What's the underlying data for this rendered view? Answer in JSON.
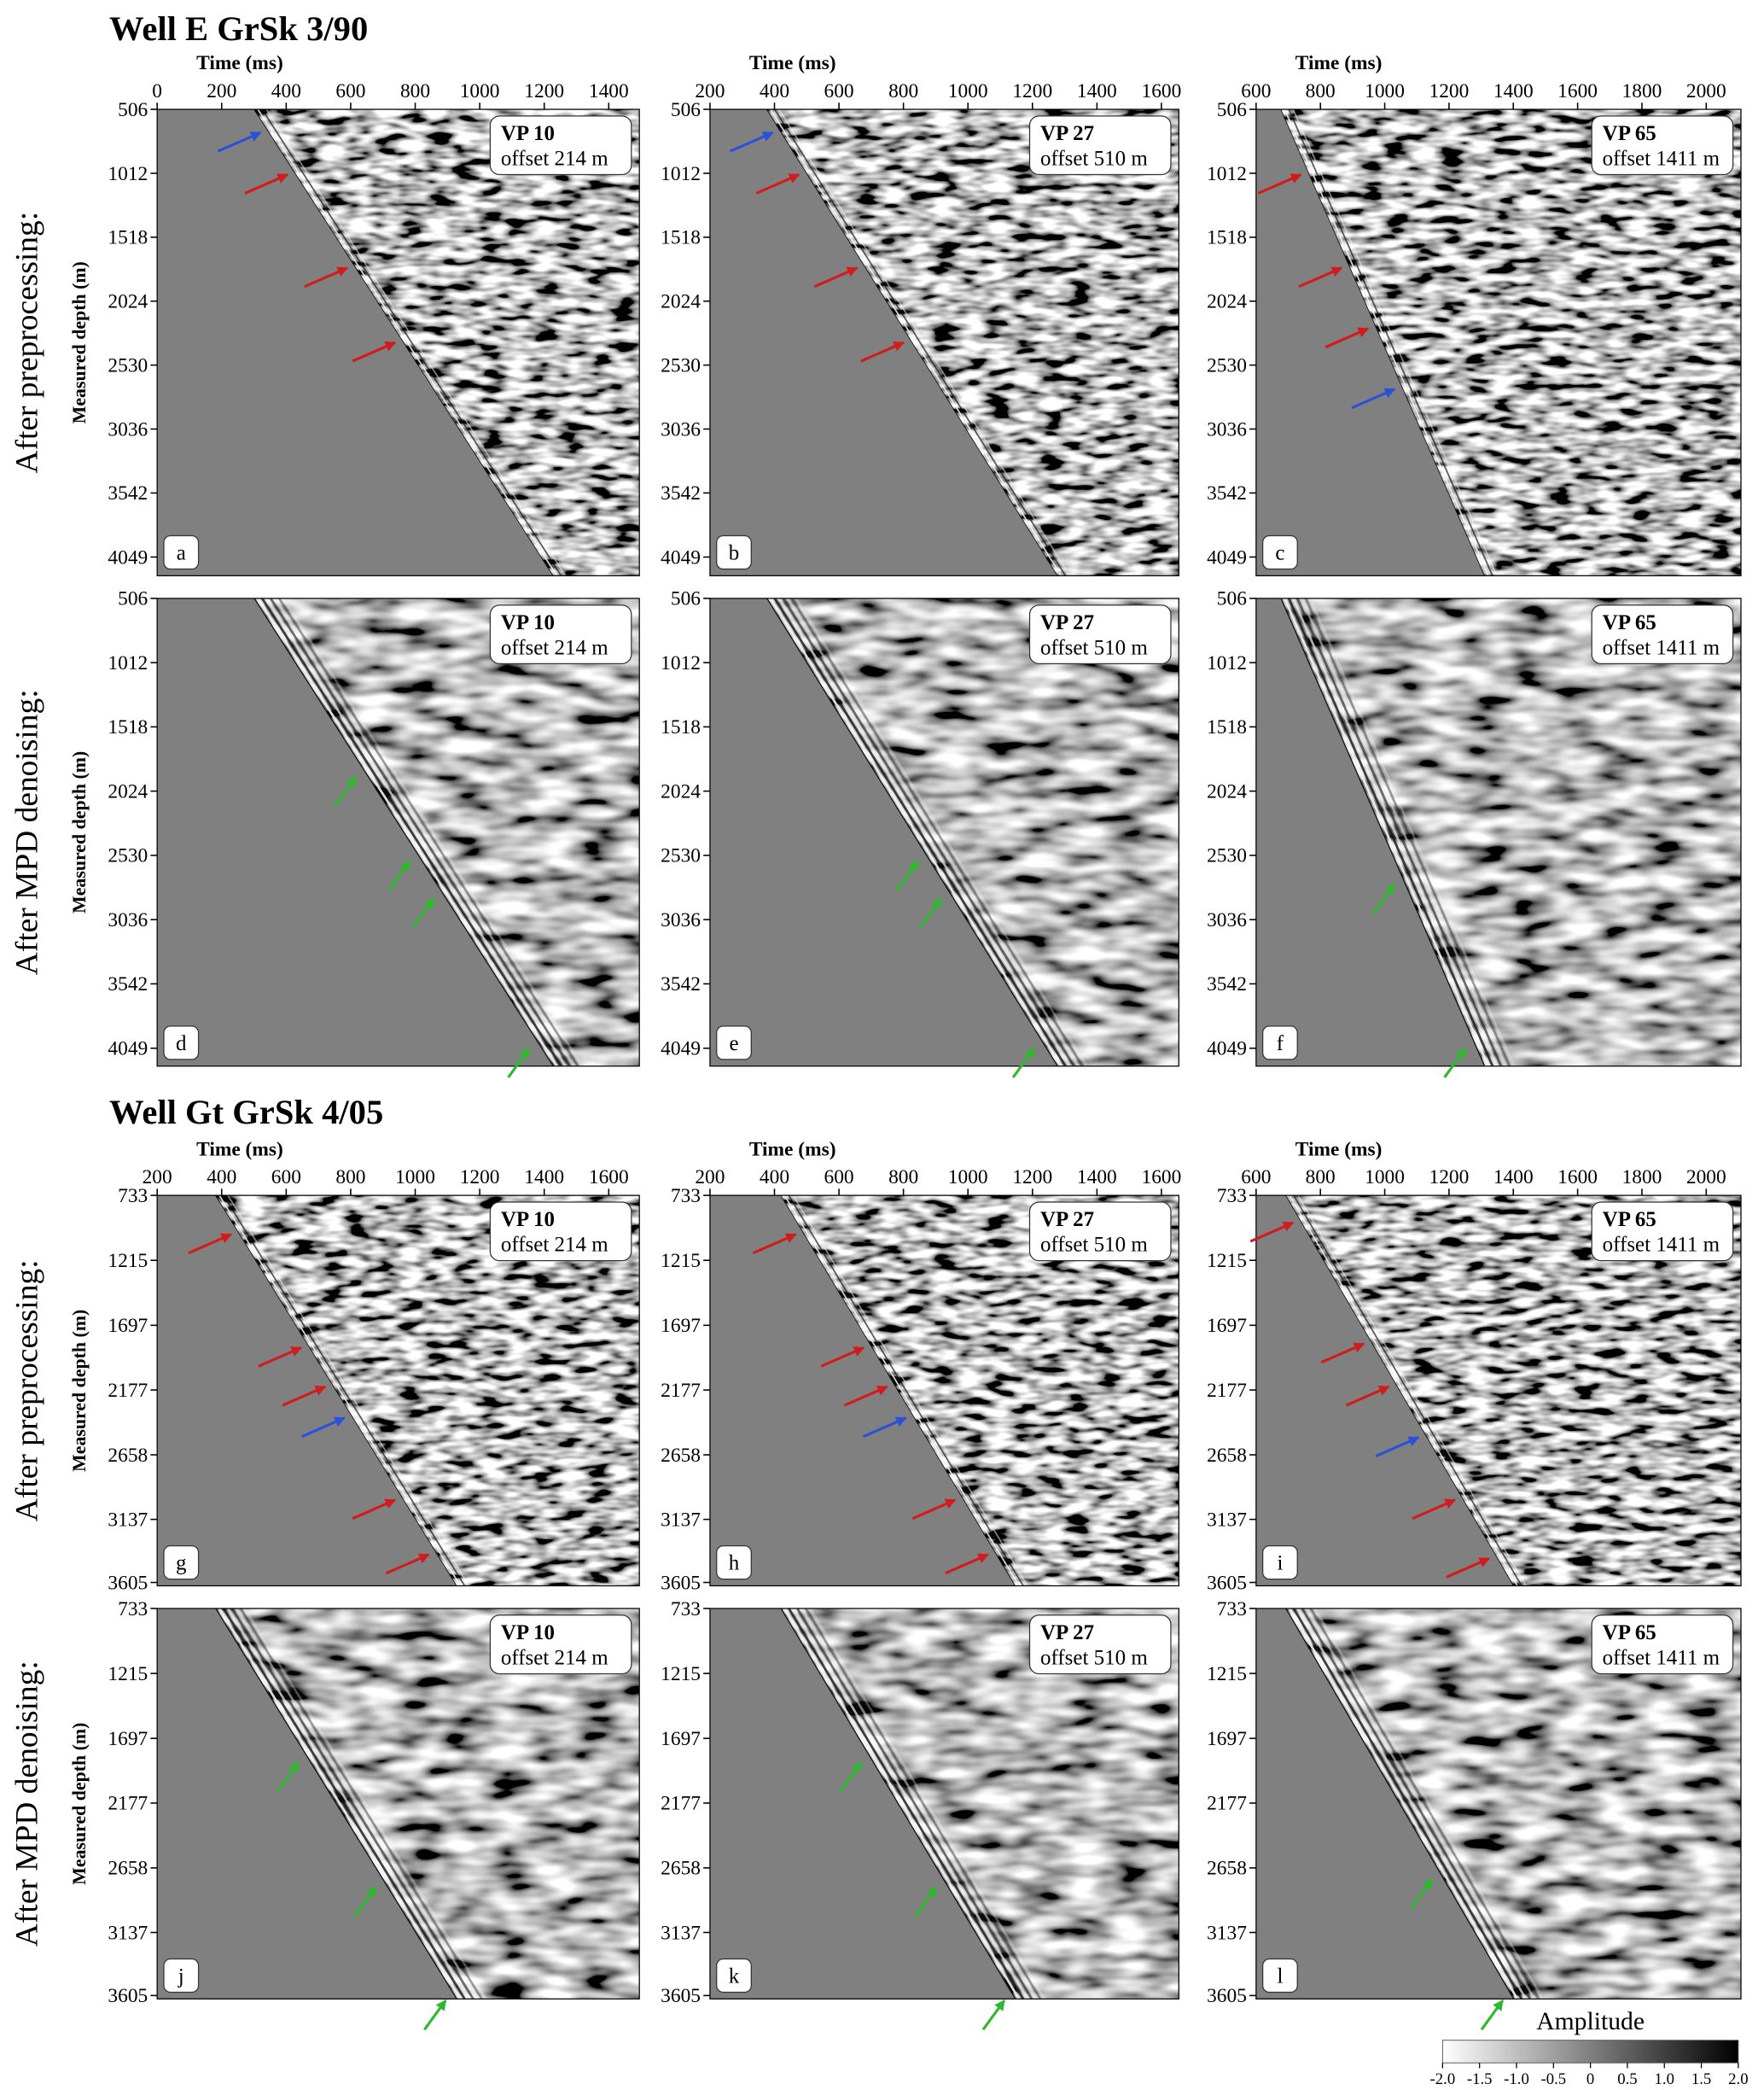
{
  "figure_titles": [
    "Well E GrSk 3/90",
    "Well Gt GrSk 4/05"
  ],
  "row_labels": [
    "After preprocessing:",
    "After MPD denoising:",
    "After preprocessing:",
    "After MPD denoising:"
  ],
  "chart_data": [
    {
      "type": "seismic",
      "label": "a",
      "vp": "VP 10",
      "offset": "offset 214 m",
      "xlabel": "Time (ms)",
      "ylabel": "Measured depth (m)",
      "xlim": [
        0,
        1495
      ],
      "xticks": [
        0,
        200,
        400,
        600,
        800,
        1000,
        1200,
        1400
      ],
      "ylim": [
        506,
        4197
      ],
      "yticks": [
        506,
        1012,
        1518,
        2024,
        2530,
        3036,
        3542,
        4049
      ]
    },
    {
      "type": "seismic",
      "label": "b",
      "vp": "VP 27",
      "offset": "offset 510 m",
      "xlabel": "Time (ms)",
      "xlim": [
        200,
        1654
      ],
      "xticks": [
        200,
        400,
        600,
        800,
        1000,
        1200,
        1400,
        1600
      ],
      "ylim": [
        506,
        4197
      ],
      "yticks": [
        506,
        1012,
        1518,
        2024,
        2530,
        3036,
        3542,
        4049
      ]
    },
    {
      "type": "seismic",
      "label": "c",
      "vp": "VP 65",
      "offset": "offset 1411 m",
      "xlabel": "Time (ms)",
      "xlim": [
        600,
        2108
      ],
      "xticks": [
        600,
        800,
        1000,
        1200,
        1400,
        1600,
        1800,
        2000
      ],
      "ylim": [
        506,
        4197
      ],
      "yticks": [
        506,
        1012,
        1518,
        2024,
        2530,
        3036,
        3542,
        4049
      ]
    },
    {
      "type": "seismic",
      "label": "d",
      "vp": "VP 10",
      "offset": "offset 214 m",
      "ylabel": "Measured depth (m)",
      "ylim": [
        506,
        4190
      ],
      "yticks": [
        506,
        1012,
        1518,
        2024,
        2530,
        3036,
        3542,
        4049
      ]
    },
    {
      "type": "seismic",
      "label": "e",
      "vp": "VP 27",
      "offset": "offset 510 m",
      "ylim": [
        506,
        4190
      ],
      "yticks": [
        506,
        1012,
        1518,
        2024,
        2530,
        3036,
        3542,
        4049
      ]
    },
    {
      "type": "seismic",
      "label": "f",
      "vp": "VP 65",
      "offset": "offset 1411 m",
      "ylim": [
        506,
        4190
      ],
      "yticks": [
        506,
        1012,
        1518,
        2024,
        2530,
        3036,
        3542,
        4049
      ]
    },
    {
      "type": "seismic",
      "label": "g",
      "vp": "VP 10",
      "offset": "offset 214 m",
      "xlabel": "Time (ms)",
      "ylabel": "Measured depth (m)",
      "xlim": [
        200,
        1695
      ],
      "xticks": [
        200,
        400,
        600,
        800,
        1000,
        1200,
        1400,
        1600
      ],
      "ylim": [
        733,
        3630
      ],
      "yticks": [
        733,
        1215,
        1697,
        2177,
        2658,
        3137,
        3605
      ]
    },
    {
      "type": "seismic",
      "label": "h",
      "vp": "VP 27",
      "offset": "offset 510 m",
      "xlabel": "Time (ms)",
      "xlim": [
        200,
        1654
      ],
      "xticks": [
        200,
        400,
        600,
        800,
        1000,
        1200,
        1400,
        1600
      ],
      "ylim": [
        733,
        3630
      ],
      "yticks": [
        733,
        1215,
        1697,
        2177,
        2658,
        3137,
        3605
      ]
    },
    {
      "type": "seismic",
      "label": "i",
      "vp": "VP 65",
      "offset": "offset 1411 m",
      "xlabel": "Time (ms)",
      "xlim": [
        600,
        2108
      ],
      "xticks": [
        600,
        800,
        1000,
        1200,
        1400,
        1600,
        1800,
        2000
      ],
      "ylim": [
        733,
        3630
      ],
      "yticks": [
        733,
        1215,
        1697,
        2177,
        2658,
        3137,
        3605
      ]
    },
    {
      "type": "seismic",
      "label": "j",
      "vp": "VP 10",
      "offset": "offset 214 m",
      "ylabel": "Measured depth (m)",
      "ylim": [
        733,
        3630
      ],
      "yticks": [
        733,
        1215,
        1697,
        2177,
        2658,
        3137,
        3605
      ]
    },
    {
      "type": "seismic",
      "label": "k",
      "vp": "VP 27",
      "offset": "offset 510 m",
      "ylim": [
        733,
        3630
      ],
      "yticks": [
        733,
        1215,
        1697,
        2177,
        2658,
        3137,
        3605
      ]
    },
    {
      "type": "seismic",
      "label": "l",
      "vp": "VP 65",
      "offset": "offset 1411 m",
      "ylim": [
        733,
        3630
      ],
      "yticks": [
        733,
        1215,
        1697,
        2177,
        2658,
        3137,
        3605
      ]
    }
  ],
  "colorbar": {
    "title": "Amplitude",
    "lim": [
      -2,
      2
    ],
    "colors": [
      "#ffffff",
      "#000000"
    ],
    "ticks": [
      {
        "value": -2,
        "label": "-2.0"
      },
      -1.5,
      {
        "value": -1,
        "label": "-1.0"
      },
      -0.5,
      0,
      0.5,
      {
        "value": 1,
        "label": "1.0"
      },
      1.5,
      {
        "value": 2,
        "label": "2.0"
      }
    ]
  }
}
